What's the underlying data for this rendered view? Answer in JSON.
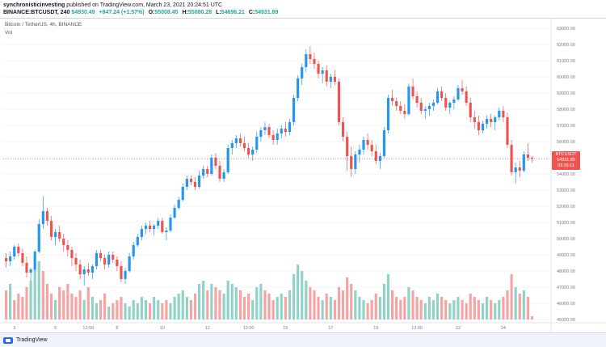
{
  "header": {
    "author": "synchronisticinvesting",
    "published_text": "published on TradingView.com, March 23, 2021 20:24:51 UTC",
    "symbol_line": "BINANCE:BTCUSDT, 240",
    "last": "54930.49",
    "change": "+847.24 (+1.57%)",
    "o_label": "O:",
    "o_value": "55008.45",
    "h_label": "H:",
    "h_value": "55080.28",
    "l_label": "L:",
    "l_value": "54696.21",
    "c_label": "C:",
    "c_value": "54931.89"
  },
  "legend": {
    "title": "Bitcoin / TetherUS, 4h, BINANCE",
    "vol": "Vol"
  },
  "price_badge": {
    "symbol": "BTCUSDT",
    "price": "54931.89",
    "timer": "03:35:11"
  },
  "footer": {
    "brand": "TradingView"
  },
  "colors": {
    "up": "#26a69a",
    "down": "#ef5350",
    "up_bar": "#2196f3",
    "vol_up": "#8fd2c6",
    "vol_down": "#f5a3a3"
  },
  "chart_data": {
    "type": "candlestick",
    "symbol": "BTCUSDT",
    "interval": "4h",
    "ylim": [
      45000,
      63500
    ],
    "y_ticks": [
      "63000.00",
      "62000.00",
      "61000.00",
      "60000.00",
      "59000.00",
      "58000.00",
      "57000.00",
      "56000.00",
      "55000.00",
      "54000.00",
      "53000.00",
      "52000.00",
      "51000.00",
      "50000.00",
      "49000.00",
      "48000.00",
      "47000.00",
      "46000.00",
      "45000.00"
    ],
    "x_ticks": [
      "3",
      "5",
      "12:00",
      "8",
      "10",
      "12",
      "12:00",
      "15",
      "17",
      "19",
      "12:00",
      "22",
      "24"
    ],
    "candles": [
      [
        48800,
        49100,
        48200,
        48600
      ],
      [
        48600,
        49200,
        48300,
        48900
      ],
      [
        48900,
        49600,
        48700,
        49500
      ],
      [
        49500,
        49700,
        48900,
        49100
      ],
      [
        49100,
        49400,
        48300,
        48500
      ],
      [
        48500,
        48900,
        47600,
        47900
      ],
      [
        47900,
        48200,
        47400,
        48100
      ],
      [
        48100,
        49300,
        48000,
        49200
      ],
      [
        49200,
        51200,
        49100,
        50900
      ],
      [
        50900,
        52600,
        50600,
        51700
      ],
      [
        51700,
        51900,
        50800,
        51100
      ],
      [
        51100,
        51400,
        49900,
        50100
      ],
      [
        50100,
        50600,
        49600,
        50400
      ],
      [
        50400,
        50800,
        49800,
        50000
      ],
      [
        50000,
        50300,
        49200,
        49600
      ],
      [
        49600,
        49900,
        48900,
        49300
      ],
      [
        49300,
        49500,
        48300,
        48800
      ],
      [
        48800,
        49100,
        48000,
        48400
      ],
      [
        48400,
        48700,
        47500,
        47800
      ],
      [
        47800,
        48300,
        47100,
        48100
      ],
      [
        48100,
        48500,
        47700,
        47900
      ],
      [
        47900,
        48400,
        47500,
        48300
      ],
      [
        48300,
        49300,
        48100,
        49100
      ],
      [
        49100,
        49300,
        48600,
        48800
      ],
      [
        48800,
        49000,
        48100,
        48400
      ],
      [
        48400,
        49200,
        48200,
        49000
      ],
      [
        49000,
        49200,
        48500,
        48700
      ],
      [
        48700,
        48900,
        48000,
        48300
      ],
      [
        48300,
        48600,
        47300,
        47500
      ],
      [
        47500,
        48200,
        47200,
        48000
      ],
      [
        48000,
        49100,
        47900,
        48900
      ],
      [
        48900,
        49800,
        48700,
        49600
      ],
      [
        49600,
        50300,
        49500,
        50100
      ],
      [
        50100,
        50800,
        49900,
        50600
      ],
      [
        50600,
        51000,
        50300,
        50800
      ],
      [
        50800,
        51100,
        50400,
        50600
      ],
      [
        50600,
        50900,
        50200,
        50800
      ],
      [
        50800,
        51300,
        50600,
        51100
      ],
      [
        51100,
        51300,
        50300,
        50400
      ],
      [
        50400,
        50700,
        49900,
        50500
      ],
      [
        50500,
        51500,
        50400,
        51300
      ],
      [
        51300,
        52100,
        51200,
        51900
      ],
      [
        51900,
        52600,
        51800,
        52400
      ],
      [
        52400,
        53400,
        52300,
        53200
      ],
      [
        53200,
        53900,
        53000,
        53700
      ],
      [
        53700,
        53900,
        53300,
        53500
      ],
      [
        53500,
        53800,
        53000,
        53200
      ],
      [
        53200,
        54200,
        53100,
        53900
      ],
      [
        53900,
        54500,
        53700,
        54300
      ],
      [
        54300,
        54500,
        53800,
        54000
      ],
      [
        54000,
        55200,
        53900,
        55000
      ],
      [
        55000,
        55300,
        54300,
        54500
      ],
      [
        54500,
        54800,
        53500,
        53700
      ],
      [
        53700,
        54300,
        53500,
        54100
      ],
      [
        54100,
        55800,
        54000,
        55600
      ],
      [
        55600,
        56100,
        55200,
        55900
      ],
      [
        55900,
        56400,
        55600,
        56200
      ],
      [
        56200,
        56500,
        55700,
        55900
      ],
      [
        55900,
        56300,
        55400,
        55600
      ],
      [
        55600,
        55900,
        55000,
        55200
      ],
      [
        55200,
        55700,
        54800,
        55500
      ],
      [
        55500,
        56600,
        55300,
        56300
      ],
      [
        56300,
        56900,
        56000,
        56700
      ],
      [
        56700,
        57200,
        56400,
        56900
      ],
      [
        56900,
        57100,
        56200,
        56400
      ],
      [
        56400,
        56700,
        55800,
        56100
      ],
      [
        56100,
        56800,
        55800,
        56500
      ],
      [
        56500,
        57000,
        56200,
        56800
      ],
      [
        56800,
        57200,
        56300,
        56600
      ],
      [
        56600,
        57400,
        56400,
        57200
      ],
      [
        57200,
        58900,
        57000,
        58700
      ],
      [
        58700,
        60100,
        58500,
        59900
      ],
      [
        59900,
        60800,
        59500,
        60600
      ],
      [
        60600,
        61700,
        60300,
        61400
      ],
      [
        61400,
        61900,
        60800,
        61100
      ],
      [
        61100,
        61500,
        60500,
        60800
      ],
      [
        60800,
        61000,
        59900,
        60200
      ],
      [
        60200,
        60600,
        59600,
        60400
      ],
      [
        60400,
        60700,
        59400,
        59700
      ],
      [
        59700,
        60200,
        59300,
        60000
      ],
      [
        60000,
        60400,
        59500,
        59700
      ],
      [
        59700,
        59900,
        57000,
        57200
      ],
      [
        57200,
        57500,
        56000,
        56300
      ],
      [
        56300,
        56600,
        54200,
        55100
      ],
      [
        55100,
        55700,
        53800,
        54300
      ],
      [
        54300,
        55400,
        54000,
        55200
      ],
      [
        55200,
        55800,
        54700,
        55500
      ],
      [
        55500,
        56300,
        55200,
        56100
      ],
      [
        56100,
        56500,
        55500,
        55800
      ],
      [
        55800,
        56100,
        55100,
        55400
      ],
      [
        55400,
        55800,
        54600,
        54800
      ],
      [
        54800,
        55300,
        54300,
        55100
      ],
      [
        55100,
        56900,
        55000,
        56700
      ],
      [
        56700,
        58900,
        56500,
        58700
      ],
      [
        58700,
        59200,
        58200,
        58500
      ],
      [
        58500,
        58700,
        57900,
        58200
      ],
      [
        58200,
        58500,
        57700,
        57900
      ],
      [
        57900,
        58300,
        57400,
        57700
      ],
      [
        57700,
        59600,
        57600,
        59400
      ],
      [
        59400,
        59900,
        58600,
        58800
      ],
      [
        58800,
        59100,
        58100,
        58400
      ],
      [
        58400,
        58700,
        57700,
        57900
      ],
      [
        57900,
        58200,
        57400,
        58000
      ],
      [
        58000,
        58400,
        57600,
        58200
      ],
      [
        58200,
        58600,
        57900,
        58400
      ],
      [
        58400,
        59300,
        58300,
        59100
      ],
      [
        59100,
        59400,
        58500,
        58700
      ],
      [
        58700,
        59000,
        57900,
        58100
      ],
      [
        58100,
        58500,
        57700,
        58400
      ],
      [
        58400,
        58800,
        58000,
        58600
      ],
      [
        58600,
        59500,
        58500,
        59300
      ],
      [
        59300,
        59800,
        58900,
        59100
      ],
      [
        59100,
        59400,
        58200,
        58400
      ],
      [
        58400,
        58700,
        57200,
        57500
      ],
      [
        57500,
        57900,
        56800,
        57200
      ],
      [
        57200,
        57600,
        56400,
        56700
      ],
      [
        56700,
        57300,
        56500,
        57100
      ],
      [
        57100,
        57600,
        56800,
        57400
      ],
      [
        57400,
        57700,
        56900,
        57200
      ],
      [
        57200,
        57600,
        56700,
        57500
      ],
      [
        57500,
        58100,
        57300,
        57900
      ],
      [
        57900,
        58200,
        57200,
        57500
      ],
      [
        57500,
        57800,
        55600,
        55800
      ],
      [
        55800,
        56100,
        53900,
        54100
      ],
      [
        54100,
        54700,
        53400,
        54400
      ],
      [
        54400,
        54800,
        53800,
        54200
      ],
      [
        54200,
        55400,
        54100,
        55200
      ],
      [
        55200,
        55900,
        54800,
        55000
      ],
      [
        55000,
        55100,
        54700,
        54930
      ]
    ],
    "volume": [
      [
        0.45,
        0
      ],
      [
        0.55,
        1
      ],
      [
        0.3,
        0
      ],
      [
        0.4,
        0
      ],
      [
        0.35,
        0
      ],
      [
        0.5,
        0
      ],
      [
        0.6,
        1
      ],
      [
        0.8,
        1
      ],
      [
        0.9,
        1
      ],
      [
        0.75,
        0
      ],
      [
        0.55,
        0
      ],
      [
        0.4,
        0
      ],
      [
        0.3,
        1
      ],
      [
        0.5,
        0
      ],
      [
        0.45,
        0
      ],
      [
        0.55,
        0
      ],
      [
        0.4,
        0
      ],
      [
        0.35,
        0
      ],
      [
        0.45,
        0
      ],
      [
        0.3,
        1
      ],
      [
        0.5,
        0
      ],
      [
        0.35,
        1
      ],
      [
        0.25,
        1
      ],
      [
        0.3,
        0
      ],
      [
        0.4,
        0
      ],
      [
        0.2,
        1
      ],
      [
        0.25,
        0
      ],
      [
        0.3,
        0
      ],
      [
        0.35,
        0
      ],
      [
        0.25,
        1
      ],
      [
        0.2,
        1
      ],
      [
        0.3,
        1
      ],
      [
        0.25,
        1
      ],
      [
        0.35,
        1
      ],
      [
        0.3,
        1
      ],
      [
        0.25,
        0
      ],
      [
        0.35,
        1
      ],
      [
        0.3,
        1
      ],
      [
        0.25,
        0
      ],
      [
        0.3,
        0
      ],
      [
        0.25,
        1
      ],
      [
        0.35,
        1
      ],
      [
        0.4,
        1
      ],
      [
        0.45,
        1
      ],
      [
        0.35,
        1
      ],
      [
        0.3,
        0
      ],
      [
        0.4,
        0
      ],
      [
        0.55,
        1
      ],
      [
        0.6,
        1
      ],
      [
        0.45,
        0
      ],
      [
        0.55,
        1
      ],
      [
        0.5,
        0
      ],
      [
        0.45,
        0
      ],
      [
        0.4,
        1
      ],
      [
        0.6,
        1
      ],
      [
        0.55,
        1
      ],
      [
        0.5,
        1
      ],
      [
        0.45,
        0
      ],
      [
        0.35,
        0
      ],
      [
        0.4,
        0
      ],
      [
        0.3,
        1
      ],
      [
        0.5,
        1
      ],
      [
        0.55,
        1
      ],
      [
        0.45,
        0
      ],
      [
        0.4,
        0
      ],
      [
        0.3,
        0
      ],
      [
        0.35,
        1
      ],
      [
        0.4,
        1
      ],
      [
        0.35,
        0
      ],
      [
        0.45,
        1
      ],
      [
        0.7,
        1
      ],
      [
        0.85,
        1
      ],
      [
        0.75,
        1
      ],
      [
        0.6,
        1
      ],
      [
        0.5,
        0
      ],
      [
        0.45,
        0
      ],
      [
        0.35,
        0
      ],
      [
        0.3,
        1
      ],
      [
        0.4,
        0
      ],
      [
        0.35,
        1
      ],
      [
        0.3,
        0
      ],
      [
        0.5,
        0
      ],
      [
        0.45,
        0
      ],
      [
        0.65,
        0
      ],
      [
        0.55,
        0
      ],
      [
        0.45,
        1
      ],
      [
        0.35,
        1
      ],
      [
        0.3,
        1
      ],
      [
        0.25,
        0
      ],
      [
        0.3,
        0
      ],
      [
        0.4,
        0
      ],
      [
        0.35,
        1
      ],
      [
        0.55,
        1
      ],
      [
        0.7,
        1
      ],
      [
        0.45,
        0
      ],
      [
        0.35,
        0
      ],
      [
        0.3,
        0
      ],
      [
        0.35,
        0
      ],
      [
        0.5,
        1
      ],
      [
        0.45,
        0
      ],
      [
        0.35,
        0
      ],
      [
        0.3,
        0
      ],
      [
        0.25,
        1
      ],
      [
        0.35,
        1
      ],
      [
        0.3,
        1
      ],
      [
        0.4,
        1
      ],
      [
        0.35,
        0
      ],
      [
        0.3,
        0
      ],
      [
        0.25,
        1
      ],
      [
        0.3,
        1
      ],
      [
        0.35,
        1
      ],
      [
        0.3,
        0
      ],
      [
        0.25,
        0
      ],
      [
        0.4,
        0
      ],
      [
        0.35,
        0
      ],
      [
        0.3,
        0
      ],
      [
        0.25,
        1
      ],
      [
        0.35,
        1
      ],
      [
        0.3,
        0
      ],
      [
        0.25,
        1
      ],
      [
        0.3,
        1
      ],
      [
        0.35,
        0
      ],
      [
        0.45,
        0
      ],
      [
        0.7,
        0
      ],
      [
        0.5,
        1
      ],
      [
        0.4,
        0
      ],
      [
        0.45,
        1
      ],
      [
        0.35,
        0
      ],
      [
        0.05,
        0
      ]
    ]
  }
}
